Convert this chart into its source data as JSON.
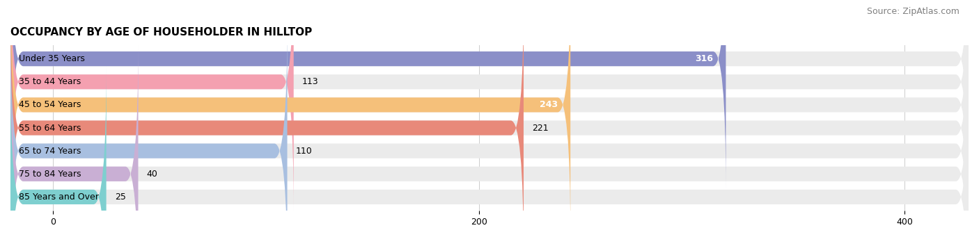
{
  "title": "OCCUPANCY BY AGE OF HOUSEHOLDER IN HILLTOP",
  "source": "Source: ZipAtlas.com",
  "categories": [
    "Under 35 Years",
    "35 to 44 Years",
    "45 to 54 Years",
    "55 to 64 Years",
    "65 to 74 Years",
    "75 to 84 Years",
    "85 Years and Over"
  ],
  "values": [
    316,
    113,
    243,
    221,
    110,
    40,
    25
  ],
  "bar_colors": [
    "#8b8fc8",
    "#f4a0b0",
    "#f5c07a",
    "#e8897a",
    "#a8bfe0",
    "#c9afd4",
    "#7ecfcf"
  ],
  "bar_bg_color": "#ebebeb",
  "label_colors": [
    "white",
    "black",
    "white",
    "black",
    "black",
    "black",
    "black"
  ],
  "xlim": [
    -20,
    430
  ],
  "xticks": [
    0,
    200,
    400
  ],
  "title_fontsize": 11,
  "source_fontsize": 9,
  "bar_label_fontsize": 9,
  "ylabel_fontsize": 9,
  "background_color": "#ffffff",
  "bar_height": 0.62,
  "figsize": [
    14.06,
    3.41
  ],
  "dpi": 100
}
